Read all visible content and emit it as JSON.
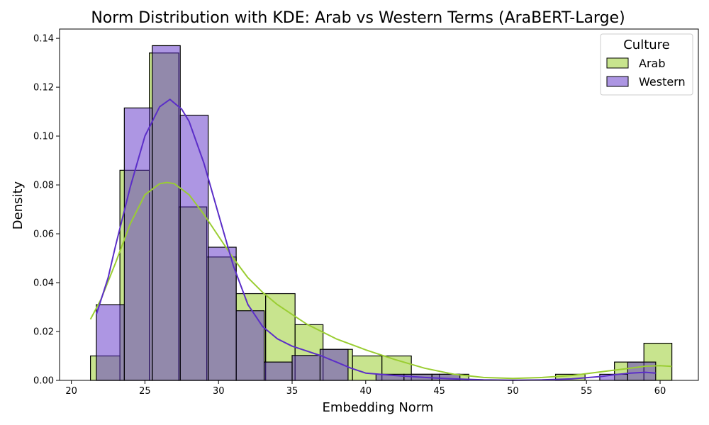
{
  "chart_data": {
    "type": "histogram",
    "title": "Norm Distribution with KDE: Arab vs Western Terms (AraBERT-Large)",
    "xlabel": "Embedding Norm",
    "ylabel": "Density",
    "xlim": [
      19.2,
      62.6
    ],
    "ylim": [
      0,
      0.1438
    ],
    "x_ticks": [
      20,
      25,
      30,
      35,
      40,
      45,
      50,
      55,
      60
    ],
    "y_ticks": [
      0.0,
      0.02,
      0.04,
      0.06,
      0.08,
      0.1,
      0.12,
      0.14
    ],
    "x_tick_labels": [
      "20",
      "25",
      "30",
      "35",
      "40",
      "45",
      "50",
      "55",
      "60"
    ],
    "y_tick_labels": [
      "0.00",
      "0.02",
      "0.04",
      "0.06",
      "0.08",
      "0.10",
      "0.12",
      "0.14"
    ],
    "legend": {
      "title": "Culture",
      "position": "top-right"
    },
    "grid": false,
    "series": [
      {
        "name": "Arab",
        "color": "#9acd32",
        "fill_opacity": 0.55,
        "bins": [
          {
            "x0": 21.3,
            "x1": 23.3,
            "density": 0.01
          },
          {
            "x0": 23.3,
            "x1": 25.3,
            "density": 0.086
          },
          {
            "x0": 25.3,
            "x1": 27.3,
            "density": 0.134
          },
          {
            "x0": 27.3,
            "x1": 29.2,
            "density": 0.071
          },
          {
            "x0": 29.2,
            "x1": 31.2,
            "density": 0.0505
          },
          {
            "x0": 31.2,
            "x1": 33.2,
            "density": 0.0355
          },
          {
            "x0": 33.2,
            "x1": 35.2,
            "density": 0.0355
          },
          {
            "x0": 35.2,
            "x1": 37.1,
            "density": 0.0228
          },
          {
            "x0": 37.1,
            "x1": 39.1,
            "density": 0.0127
          },
          {
            "x0": 39.1,
            "x1": 41.1,
            "density": 0.01
          },
          {
            "x0": 41.1,
            "x1": 43.1,
            "density": 0.01
          },
          {
            "x0": 43.1,
            "x1": 45.0,
            "density": 0.0025
          },
          {
            "x0": 45.0,
            "x1": 47.0,
            "density": 0.0025
          },
          {
            "x0": 47.0,
            "x1": 49.0,
            "density": 0
          },
          {
            "x0": 49.0,
            "x1": 51.0,
            "density": 0
          },
          {
            "x0": 51.0,
            "x1": 52.9,
            "density": 0
          },
          {
            "x0": 52.9,
            "x1": 54.9,
            "density": 0.0025
          },
          {
            "x0": 54.9,
            "x1": 56.9,
            "density": 0
          },
          {
            "x0": 56.9,
            "x1": 58.9,
            "density": 0.0075
          },
          {
            "x0": 58.9,
            "x1": 60.8,
            "density": 0.0152
          }
        ],
        "kde": {
          "x": [
            21.3,
            22,
            23,
            24,
            25,
            26,
            26.5,
            27,
            28,
            29,
            30,
            31,
            32,
            33,
            34,
            35,
            36,
            37,
            38,
            40,
            42,
            44,
            46,
            48,
            50,
            52,
            54,
            56,
            58,
            59,
            60,
            60.8
          ],
          "y": [
            0.025,
            0.033,
            0.048,
            0.064,
            0.076,
            0.0805,
            0.081,
            0.0805,
            0.076,
            0.068,
            0.059,
            0.05,
            0.042,
            0.036,
            0.031,
            0.027,
            0.023,
            0.02,
            0.017,
            0.0125,
            0.0085,
            0.005,
            0.0025,
            0.0012,
            0.0008,
            0.0012,
            0.002,
            0.0035,
            0.005,
            0.0058,
            0.006,
            0.0057
          ]
        }
      },
      {
        "name": "Western",
        "color": "#5b2ec8",
        "fill_opacity": 0.5,
        "bins": [
          {
            "x0": 21.7,
            "x1": 23.6,
            "density": 0.031
          },
          {
            "x0": 23.6,
            "x1": 25.5,
            "density": 0.1115
          },
          {
            "x0": 25.5,
            "x1": 27.4,
            "density": 0.137
          },
          {
            "x0": 27.4,
            "x1": 29.3,
            "density": 0.1085
          },
          {
            "x0": 29.3,
            "x1": 31.2,
            "density": 0.0545
          },
          {
            "x0": 31.2,
            "x1": 33.1,
            "density": 0.0285
          },
          {
            "x0": 33.1,
            "x1": 35.0,
            "density": 0.0075
          },
          {
            "x0": 35.0,
            "x1": 36.9,
            "density": 0.0102
          },
          {
            "x0": 36.9,
            "x1": 38.8,
            "density": 0.0127
          },
          {
            "x0": 38.8,
            "x1": 40.7,
            "density": 0
          },
          {
            "x0": 40.7,
            "x1": 42.6,
            "density": 0.0025
          },
          {
            "x0": 42.6,
            "x1": 44.5,
            "density": 0.0025
          },
          {
            "x0": 44.5,
            "x1": 46.4,
            "density": 0.0025
          },
          {
            "x0": 46.4,
            "x1": 48.3,
            "density": 0
          },
          {
            "x0": 48.3,
            "x1": 50.2,
            "density": 0
          },
          {
            "x0": 50.2,
            "x1": 52.1,
            "density": 0
          },
          {
            "x0": 52.1,
            "x1": 54.0,
            "density": 0
          },
          {
            "x0": 54.0,
            "x1": 55.9,
            "density": 0
          },
          {
            "x0": 55.9,
            "x1": 57.8,
            "density": 0.0025
          },
          {
            "x0": 57.8,
            "x1": 59.7,
            "density": 0.0075
          }
        ],
        "kde": {
          "x": [
            21.7,
            22.5,
            23,
            24,
            25,
            26,
            26.7,
            27.5,
            28,
            29,
            30,
            31,
            32,
            33,
            34,
            35,
            36,
            37,
            38,
            39,
            40,
            42,
            44,
            46,
            48,
            50,
            52,
            54,
            56,
            57,
            58,
            59,
            59.7
          ],
          "y": [
            0.027,
            0.042,
            0.055,
            0.079,
            0.1,
            0.112,
            0.115,
            0.111,
            0.106,
            0.089,
            0.068,
            0.047,
            0.031,
            0.022,
            0.017,
            0.014,
            0.012,
            0.01,
            0.0075,
            0.005,
            0.003,
            0.002,
            0.0012,
            0.0006,
            0.0002,
            0.0001,
            0.0002,
            0.0006,
            0.0016,
            0.0024,
            0.003,
            0.0033,
            0.003
          ]
        }
      }
    ]
  }
}
